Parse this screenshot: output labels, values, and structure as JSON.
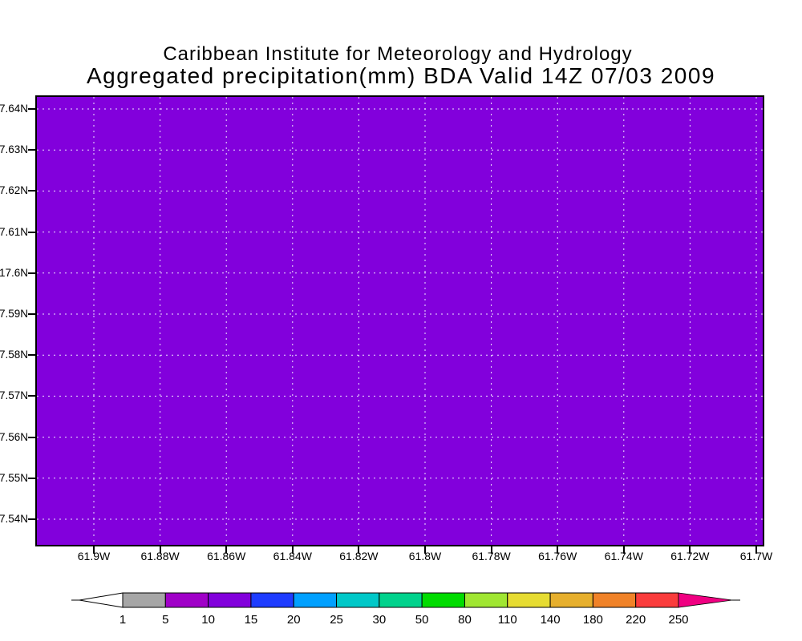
{
  "title": {
    "line1": "Caribbean Institute for Meteorology and Hydrology",
    "line2": "Aggregated precipitation(mm) BDA Valid 14Z 07/03 2009"
  },
  "axes": {
    "y_tick_labels": [
      "7.64N",
      "7.63N",
      "7.62N",
      "7.61N",
      "17.6N",
      "7.59N",
      "7.58N",
      "7.57N",
      "7.56N",
      "7.55N",
      "7.54N"
    ],
    "x_tick_labels": [
      "61.9W",
      "61.88W",
      "61.86W",
      "61.84W",
      "61.82W",
      "61.8W",
      "61.78W",
      "61.76W",
      "61.74W",
      "61.72W",
      "61.7W"
    ]
  },
  "map": {
    "fill_color": "#8200dc",
    "grid_color": "#f0e4ff"
  },
  "colorbar": {
    "tick_labels": [
      "1",
      "5",
      "10",
      "15",
      "20",
      "25",
      "30",
      "50",
      "80",
      "110",
      "140",
      "180",
      "220",
      "250"
    ],
    "segment_colors": [
      "#a6a6a6",
      "#a000c8",
      "#8200dc",
      "#1e3cff",
      "#00a0ff",
      "#00c8c8",
      "#00d28c",
      "#00dc00",
      "#a0e632",
      "#e6dc32",
      "#e6af2d",
      "#f08228",
      "#fa3c3c"
    ],
    "under_arrow_color": "#ffffff",
    "over_arrow_color": "#f00082"
  },
  "chart_data": {
    "type": "heatmap",
    "title": "Aggregated precipitation(mm) BDA Valid 14Z 07/03 2009",
    "institution": "Caribbean Institute for Meteorology and Hydrology",
    "x_tick_labels": [
      "61.9W",
      "61.88W",
      "61.86W",
      "61.84W",
      "61.82W",
      "61.8W",
      "61.78W",
      "61.76W",
      "61.74W",
      "61.72W",
      "61.7W"
    ],
    "y_tick_labels": [
      "7.64N",
      "7.63N",
      "7.62N",
      "7.61N",
      "17.6N",
      "7.59N",
      "7.58N",
      "7.57N",
      "7.56N",
      "7.55N",
      "7.54N"
    ],
    "legend_levels": [
      1,
      5,
      10,
      15,
      20,
      25,
      30,
      50,
      80,
      110,
      140,
      180,
      220,
      250
    ],
    "legend_colors": [
      "#a6a6a6",
      "#a000c8",
      "#8200dc",
      "#1e3cff",
      "#00a0ff",
      "#00c8c8",
      "#00d28c",
      "#00dc00",
      "#a0e632",
      "#e6dc32",
      "#e6af2d",
      "#f08228",
      "#fa3c3c"
    ],
    "legend_position": "bottom",
    "grid": true,
    "field": "aggregated precipitation (mm)",
    "field_values": "uniform across entire domain",
    "uniform_bin": [
      10,
      15
    ],
    "uniform_bin_color": "#8200dc"
  }
}
